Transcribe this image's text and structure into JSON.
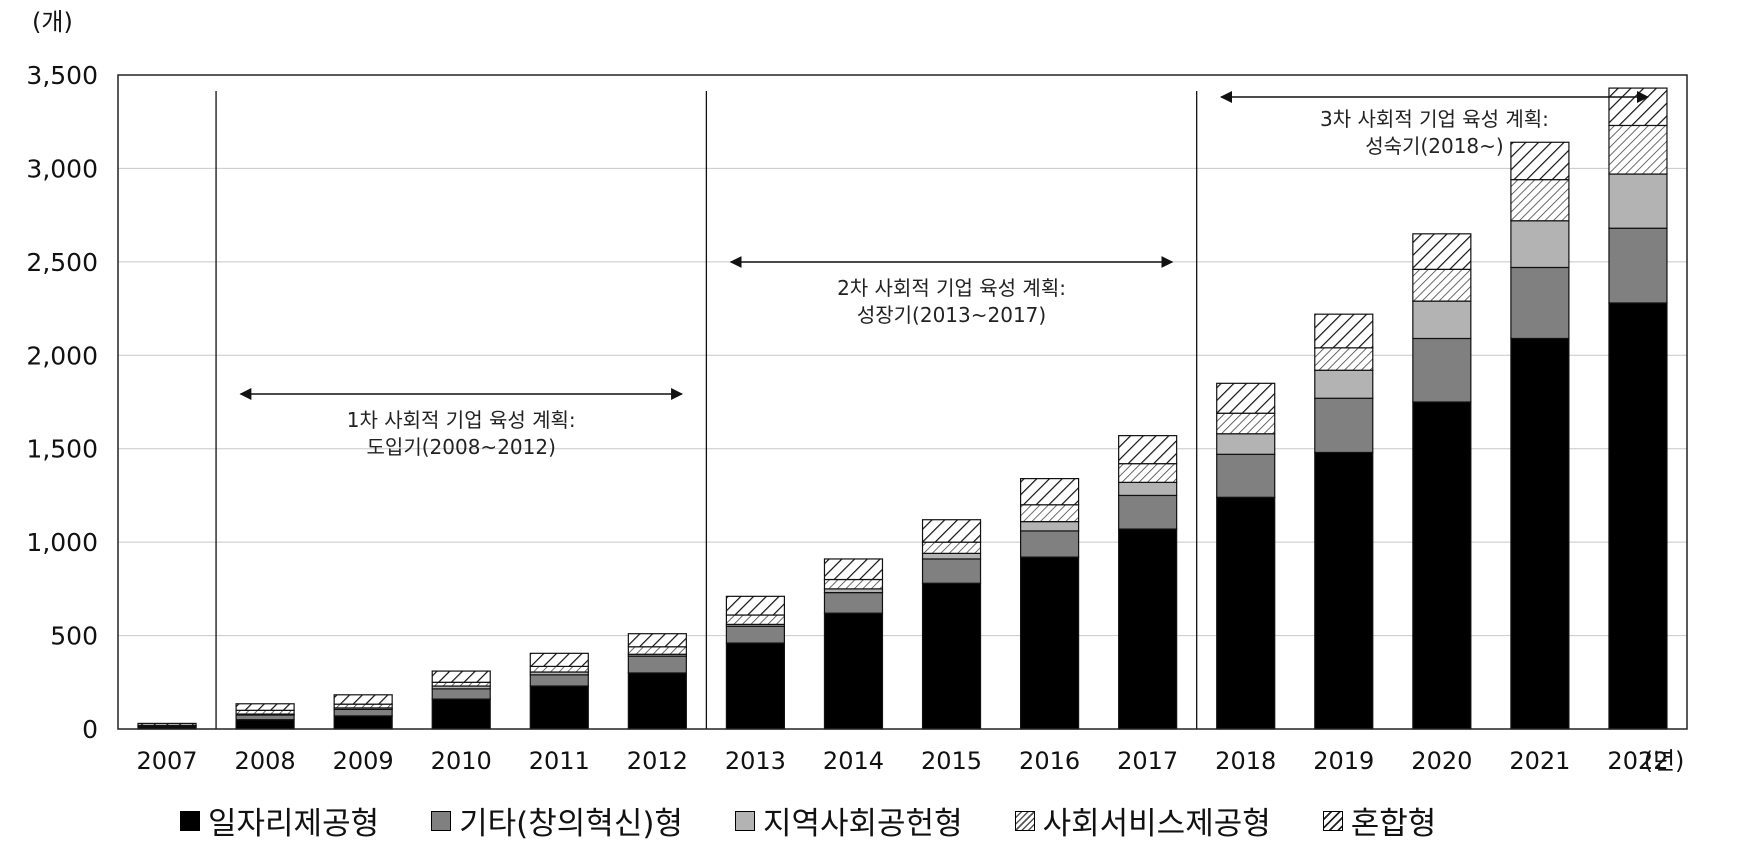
{
  "chart_data": {
    "type": "bar",
    "stacked": true,
    "y_unit_label": "(개)",
    "x_unit_label": "(년)",
    "ylim": [
      0,
      3500
    ],
    "yticks": [
      "0",
      "500",
      "1,000",
      "1,500",
      "2,000",
      "2,500",
      "3,000",
      "3,500"
    ],
    "ytick_values": [
      0,
      500,
      1000,
      1500,
      2000,
      2500,
      3000,
      3500
    ],
    "grid": true,
    "legend_position": "bottom",
    "categories": [
      "2007",
      "2008",
      "2009",
      "2010",
      "2011",
      "2012",
      "2013",
      "2014",
      "2015",
      "2016",
      "2017",
      "2018",
      "2019",
      "2020",
      "2021",
      "2022"
    ],
    "series": [
      {
        "name": "일자리제공형",
        "key": "jobs",
        "values": [
          10,
          50,
          70,
          160,
          230,
          300,
          460,
          620,
          780,
          920,
          1070,
          1240,
          1480,
          1750,
          2090,
          2280
        ]
      },
      {
        "name": "기타(창의혁신)형",
        "key": "other",
        "values": [
          5,
          25,
          35,
          55,
          60,
          90,
          90,
          110,
          130,
          140,
          180,
          230,
          290,
          340,
          380,
          400
        ]
      },
      {
        "name": "지역사회공헌형",
        "key": "community",
        "values": [
          2,
          5,
          8,
          15,
          15,
          10,
          10,
          20,
          30,
          50,
          70,
          110,
          150,
          200,
          250,
          290
        ]
      },
      {
        "name": "사회서비스제공형",
        "key": "service",
        "values": [
          3,
          20,
          20,
          20,
          30,
          40,
          50,
          50,
          60,
          90,
          100,
          110,
          120,
          170,
          220,
          260
        ]
      },
      {
        "name": "혼합형",
        "key": "mixed",
        "values": [
          10,
          35,
          50,
          60,
          70,
          70,
          100,
          110,
          120,
          140,
          150,
          160,
          180,
          190,
          200,
          200
        ]
      }
    ],
    "periods": [
      {
        "line1": "1차 사회적 기업 육성 계획:",
        "line2": "도입기(2008~2012)"
      },
      {
        "line1": "2차 사회적 기업 육성 계획:",
        "line2": "성장기(2013~2017)"
      },
      {
        "line1": "3차 사회적 기업 육성 계획:",
        "line2": "성숙기(2018~)"
      }
    ]
  }
}
